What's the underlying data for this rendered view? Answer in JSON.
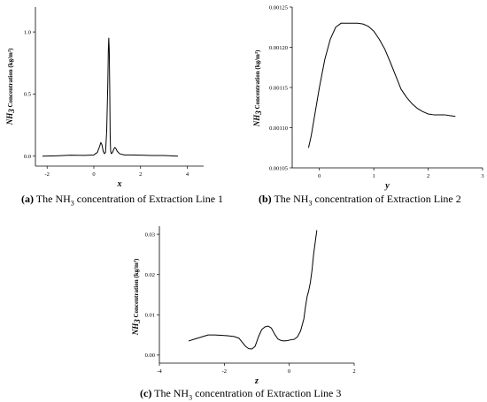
{
  "captions": [
    {
      "letter": "(a)",
      "pre": " The NH",
      "sub": "3",
      "post": " concentration of Extraction Line 1"
    },
    {
      "letter": "(b)",
      "pre": " The NH",
      "sub": "3",
      "post": " concentration of Extraction Line 2"
    },
    {
      "letter": "(c)",
      "pre": " The NH",
      "sub": "3",
      "post": " concentration of Extraction Line 3"
    }
  ],
  "y_label": {
    "chem": "NH",
    "chem_sub": "3",
    "text": "Concentration (kg/m³)"
  },
  "chart_data": [
    {
      "type": "line",
      "xlabel": "x",
      "xlim": [
        -2.5,
        4.7
      ],
      "ylim": [
        -0.08,
        1.2
      ],
      "xticks": [
        -2,
        0,
        2,
        4
      ],
      "xtick_labels": [
        "-2",
        "0",
        "2",
        "4"
      ],
      "yticks": [
        0.0,
        0.5,
        1.0
      ],
      "ytick_labels": [
        "0.0",
        "0.5",
        "1.0"
      ],
      "series": [
        {
          "x": [
            -2.2,
            -1.6,
            -1.0,
            -0.4,
            0.0,
            0.15,
            0.25,
            0.3,
            0.35,
            0.4,
            0.45,
            0.5,
            0.55,
            0.6,
            0.62,
            0.64,
            0.66,
            0.68,
            0.7,
            0.72,
            0.75,
            0.8,
            0.85,
            0.9,
            0.95,
            1.0,
            1.1,
            1.3,
            1.6,
            2.0,
            2.5,
            3.0,
            3.6
          ],
          "y": [
            0.0,
            0.003,
            0.008,
            0.006,
            0.01,
            0.03,
            0.08,
            0.11,
            0.09,
            0.04,
            0.02,
            0.03,
            0.2,
            0.6,
            0.85,
            0.95,
            0.85,
            0.55,
            0.15,
            0.04,
            0.02,
            0.03,
            0.055,
            0.07,
            0.06,
            0.04,
            0.02,
            0.01,
            0.01,
            0.008,
            0.005,
            0.005,
            0.0
          ]
        }
      ]
    },
    {
      "type": "line",
      "xlabel": "y",
      "xlim": [
        -0.5,
        3.0
      ],
      "ylim": [
        0.00105,
        0.00125
      ],
      "xticks": [
        0,
        1,
        2,
        3
      ],
      "xtick_labels": [
        "0",
        "1",
        "2",
        "3"
      ],
      "yticks": [
        0.00105,
        0.0011,
        0.00115,
        0.0012,
        0.00125
      ],
      "ytick_labels": [
        "0.00105",
        "0.00110",
        "0.00115",
        "0.00120",
        "0.00125"
      ],
      "series": [
        {
          "x": [
            -0.2,
            -0.15,
            -0.1,
            0.0,
            0.1,
            0.2,
            0.3,
            0.4,
            0.5,
            0.6,
            0.7,
            0.8,
            0.9,
            1.0,
            1.1,
            1.2,
            1.3,
            1.4,
            1.5,
            1.6,
            1.7,
            1.8,
            1.9,
            2.0,
            2.1,
            2.2,
            2.3,
            2.4,
            2.5
          ],
          "y": [
            0.001075,
            0.00109,
            0.00111,
            0.00115,
            0.001185,
            0.00121,
            0.001225,
            0.00123,
            0.00123,
            0.00123,
            0.00123,
            0.001229,
            0.001226,
            0.00122,
            0.00121,
            0.001198,
            0.001182,
            0.001165,
            0.001148,
            0.001138,
            0.00113,
            0.001124,
            0.00112,
            0.001117,
            0.001116,
            0.001116,
            0.001116,
            0.001115,
            0.001114
          ]
        }
      ]
    },
    {
      "type": "line",
      "xlabel": "z",
      "xlim": [
        -4.0,
        2.0
      ],
      "ylim": [
        -0.002,
        0.032
      ],
      "xticks": [
        -4,
        -2,
        0,
        2
      ],
      "xtick_labels": [
        "-4",
        "-2",
        "0",
        "2"
      ],
      "yticks": [
        0.0,
        0.01,
        0.02,
        0.03
      ],
      "ytick_labels": [
        "0.00",
        "0.01",
        "0.02",
        "0.03"
      ],
      "series": [
        {
          "x": [
            -3.1,
            -2.9,
            -2.7,
            -2.5,
            -2.3,
            -2.1,
            -1.9,
            -1.7,
            -1.55,
            -1.45,
            -1.35,
            -1.25,
            -1.15,
            -1.05,
            -0.95,
            -0.85,
            -0.75,
            -0.65,
            -0.55,
            -0.45,
            -0.35,
            -0.25,
            -0.15,
            -0.05,
            0.05,
            0.15,
            0.25,
            0.35,
            0.45,
            0.5,
            0.55,
            0.6,
            0.65,
            0.7,
            0.75,
            0.8,
            0.85
          ],
          "y": [
            0.0035,
            0.004,
            0.0045,
            0.005,
            0.005,
            0.0049,
            0.0048,
            0.0046,
            0.0042,
            0.0032,
            0.0022,
            0.0016,
            0.0015,
            0.0022,
            0.0045,
            0.0063,
            0.007,
            0.0072,
            0.0067,
            0.0052,
            0.004,
            0.0036,
            0.0035,
            0.0036,
            0.0038,
            0.0039,
            0.0045,
            0.006,
            0.009,
            0.012,
            0.0145,
            0.016,
            0.018,
            0.021,
            0.025,
            0.028,
            0.031
          ]
        }
      ]
    }
  ]
}
